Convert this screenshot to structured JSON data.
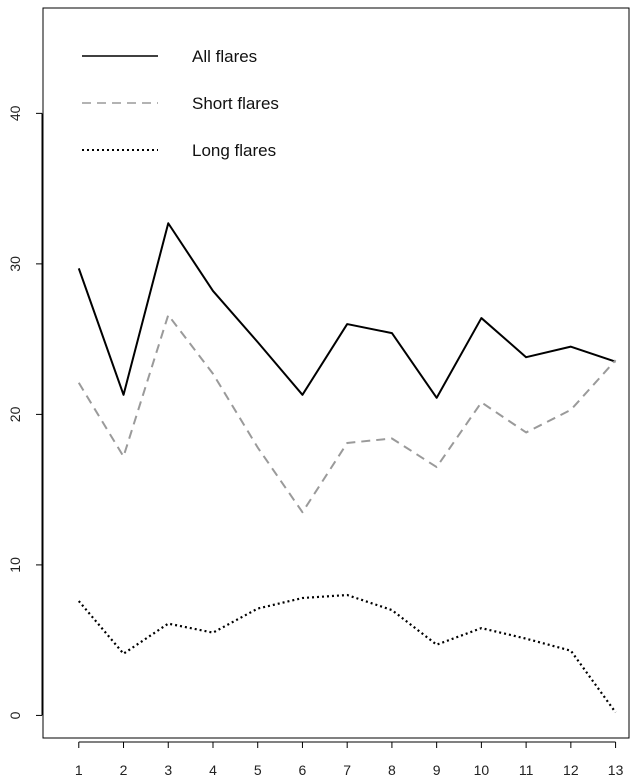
{
  "chart_data": {
    "type": "line",
    "title": "",
    "xlabel": "",
    "ylabel": "",
    "x": [
      1,
      2,
      3,
      4,
      5,
      6,
      7,
      8,
      9,
      10,
      11,
      12,
      13
    ],
    "x_ticks": [
      "1",
      "2",
      "3",
      "4",
      "5",
      "6",
      "7",
      "8",
      "9",
      "10",
      "11",
      "12",
      "13"
    ],
    "y_ticks": [
      "0",
      "10",
      "20",
      "30",
      "40"
    ],
    "xlim": [
      0.2,
      13.3
    ],
    "ylim": [
      -1.5,
      47
    ],
    "grid": false,
    "legend_position": "top-left",
    "series": [
      {
        "name": "All flares",
        "color": "#000000",
        "line_style": "solid",
        "values": [
          29.7,
          21.3,
          32.7,
          28.2,
          24.8,
          21.3,
          26.0,
          25.4,
          21.1,
          26.4,
          23.8,
          24.5,
          23.5
        ]
      },
      {
        "name": "Short flares",
        "color": "#9a9a9a",
        "line_style": "dashed",
        "values": [
          22.1,
          17.2,
          26.6,
          22.7,
          17.8,
          13.5,
          18.1,
          18.4,
          16.5,
          20.8,
          18.8,
          20.3,
          23.6
        ]
      },
      {
        "name": "Long flares",
        "color": "#000000",
        "line_style": "dotted",
        "values": [
          7.6,
          4.1,
          6.1,
          5.5,
          7.1,
          7.8,
          8.0,
          7.0,
          4.7,
          5.8,
          5.1,
          4.3,
          0.2
        ]
      }
    ]
  }
}
